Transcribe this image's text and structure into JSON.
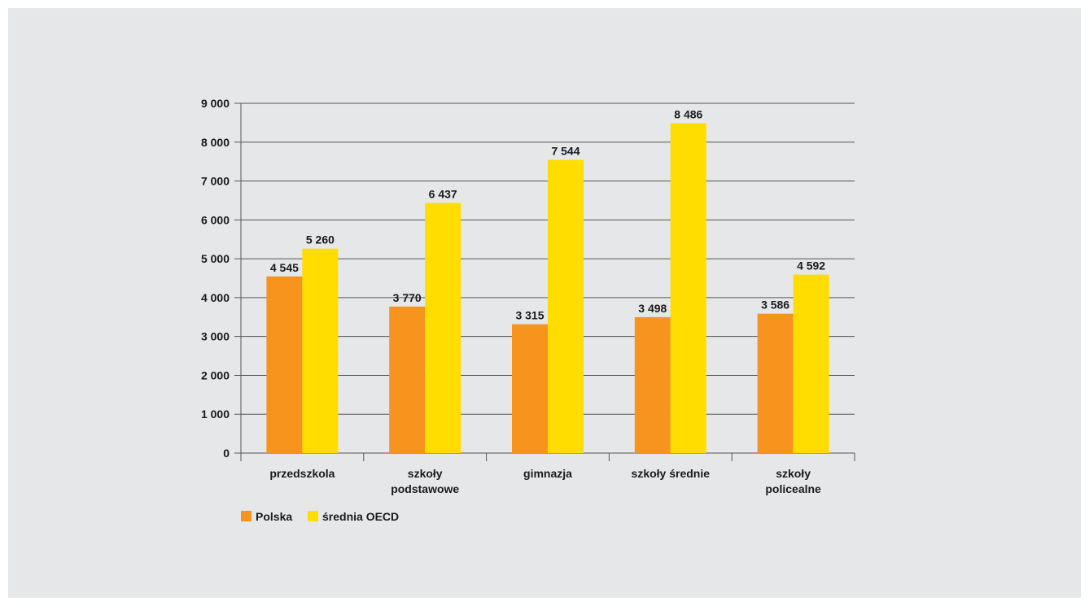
{
  "chart_data": {
    "type": "bar",
    "categories": [
      [
        "przedszkola"
      ],
      [
        "szkoły",
        "podstawowe"
      ],
      [
        "gimnazja"
      ],
      [
        "szkoły średnie"
      ],
      [
        "szkoły",
        "policealne"
      ]
    ],
    "series": [
      {
        "name": "Polska",
        "color": "#f7941d",
        "values": [
          4545,
          3770,
          3315,
          3498,
          3586
        ],
        "labels": [
          "4 545",
          "3 770",
          "3 315",
          "3 498",
          "3 586"
        ]
      },
      {
        "name": "średnia OECD",
        "color": "#ffdd00",
        "values": [
          5260,
          6437,
          7544,
          8486,
          4592
        ],
        "labels": [
          "5 260",
          "6 437",
          "7 544",
          "8 486",
          "4 592"
        ]
      }
    ],
    "yticks": [
      0,
      1000,
      2000,
      3000,
      4000,
      5000,
      6000,
      7000,
      8000,
      9000
    ],
    "ytick_labels": [
      "0",
      "1 000",
      "2 000",
      "3 000",
      "4 000",
      "5 000",
      "6 000",
      "7 000",
      "8 000",
      "9 000"
    ],
    "ylim": [
      0,
      9000
    ],
    "grid": true,
    "legend_position": "bottom-left"
  }
}
